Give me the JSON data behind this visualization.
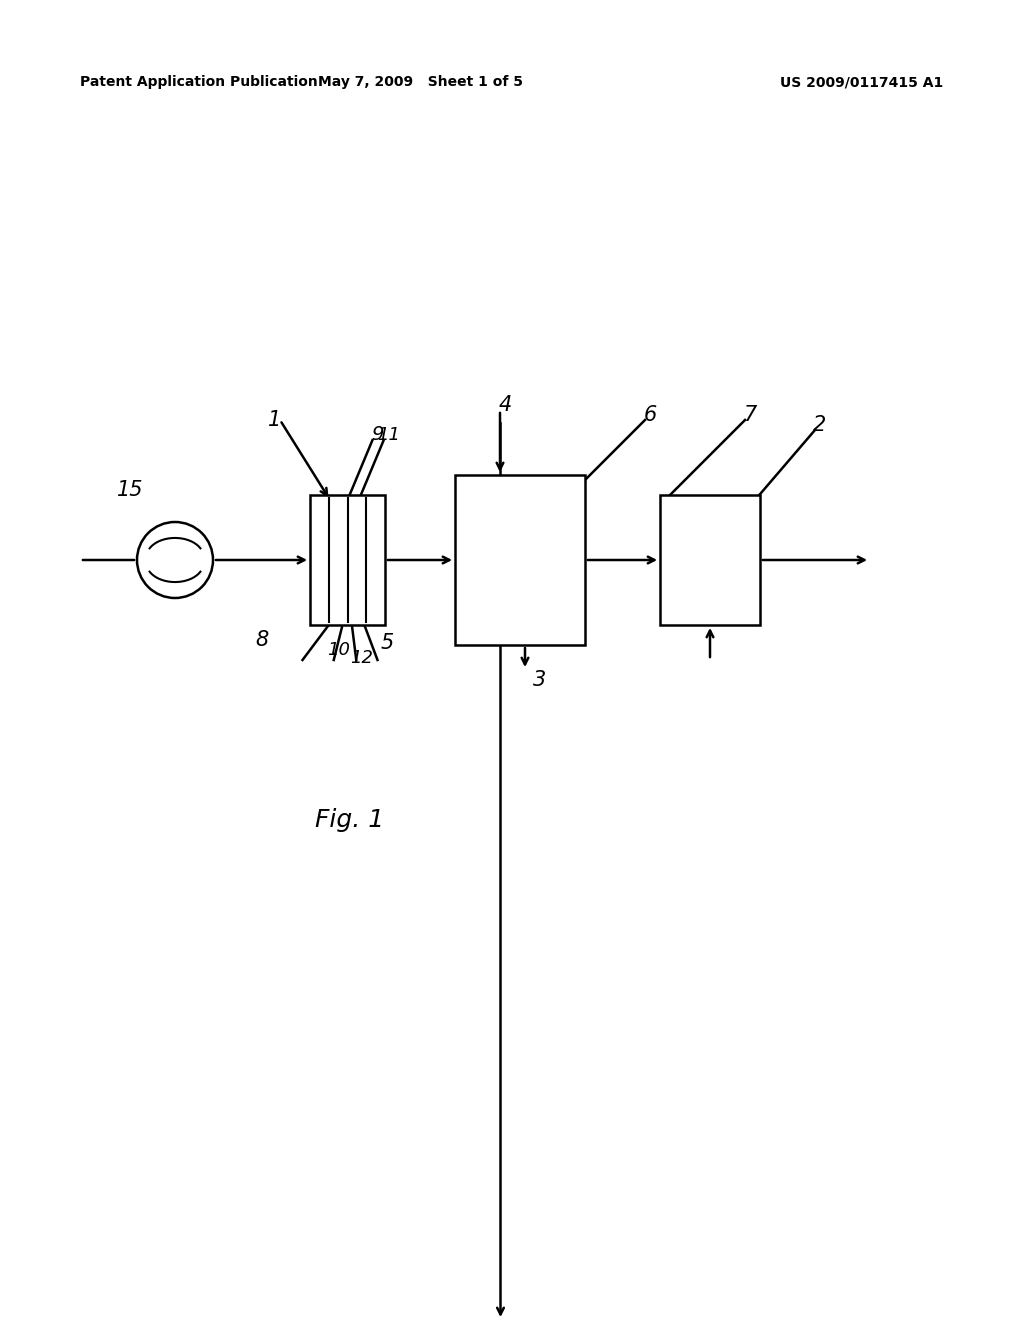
{
  "bg_color": "#ffffff",
  "header_left": "Patent Application Publication",
  "header_mid": "May 7, 2009   Sheet 1 of 5",
  "header_right": "US 2009/0117415 A1",
  "fig_label": "Fig. 1"
}
